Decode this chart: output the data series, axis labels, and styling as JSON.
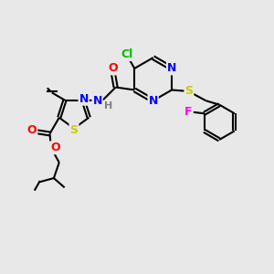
{
  "bg_color": "#e8e8e8",
  "atom_colors": {
    "C": "#000000",
    "N": "#0000ff",
    "O": "#ff0000",
    "S": "#cccc00",
    "Cl": "#00bb00",
    "F": "#ff00ff",
    "H": "#808080"
  },
  "bond_color": "#000000",
  "bond_lw": 1.5,
  "font_size": 9,
  "title": ""
}
